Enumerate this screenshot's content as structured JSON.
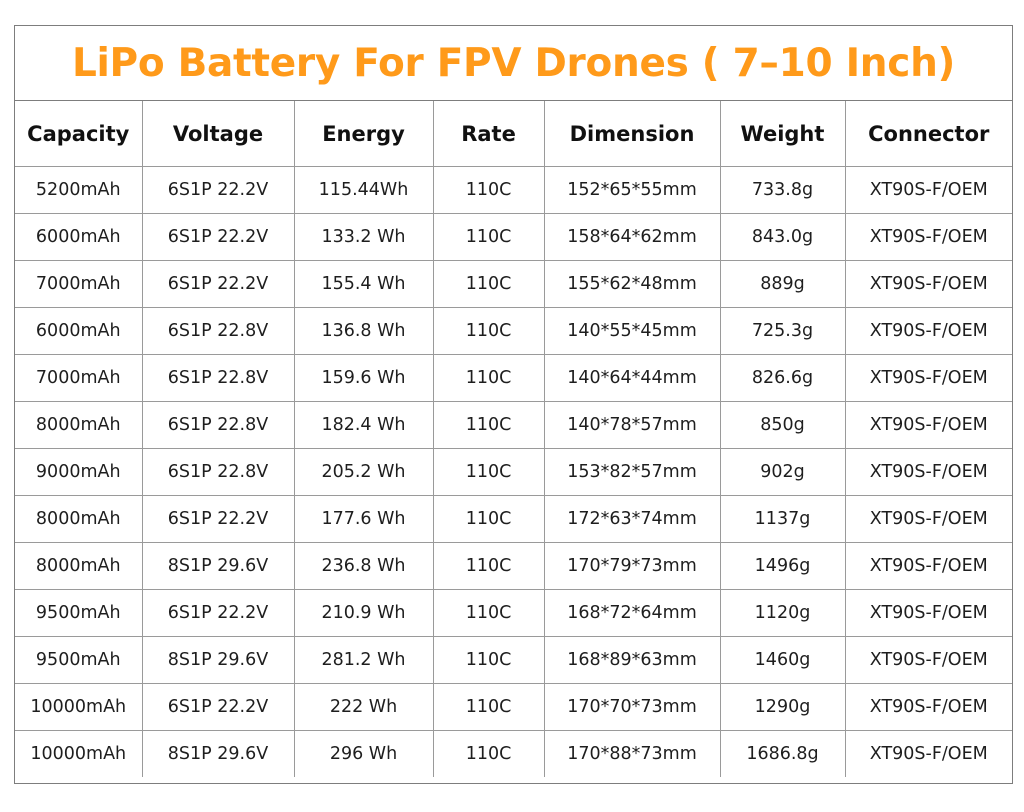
{
  "title": "LiPo Battery For FPV Drones ( 7–10 Inch)",
  "colors": {
    "title": "#ff9a1a",
    "border": "#9a9a9a",
    "text": "#1e1e1e"
  },
  "table": {
    "headers": [
      "Capacity",
      "Voltage",
      "Energy",
      "Rate",
      "Dimension",
      "Weight",
      "Connector"
    ],
    "rows": [
      [
        "5200mAh",
        "6S1P 22.2V",
        "115.44Wh",
        "110C",
        "152*65*55mm",
        "733.8g",
        "XT90S-F/OEM"
      ],
      [
        "6000mAh",
        "6S1P 22.2V",
        "133.2 Wh",
        "110C",
        "158*64*62mm",
        "843.0g",
        "XT90S-F/OEM"
      ],
      [
        "7000mAh",
        "6S1P 22.2V",
        "155.4 Wh",
        "110C",
        "155*62*48mm",
        "889g",
        "XT90S-F/OEM"
      ],
      [
        "6000mAh",
        "6S1P 22.8V",
        "136.8 Wh",
        "110C",
        "140*55*45mm",
        "725.3g",
        "XT90S-F/OEM"
      ],
      [
        "7000mAh",
        "6S1P 22.8V",
        "159.6 Wh",
        "110C",
        "140*64*44mm",
        "826.6g",
        "XT90S-F/OEM"
      ],
      [
        "8000mAh",
        "6S1P 22.8V",
        "182.4 Wh",
        "110C",
        "140*78*57mm",
        "850g",
        "XT90S-F/OEM"
      ],
      [
        "9000mAh",
        "6S1P 22.8V",
        "205.2 Wh",
        "110C",
        "153*82*57mm",
        "902g",
        "XT90S-F/OEM"
      ],
      [
        "8000mAh",
        "6S1P 22.2V",
        "177.6 Wh",
        "110C",
        "172*63*74mm",
        "1137g",
        "XT90S-F/OEM"
      ],
      [
        "8000mAh",
        "8S1P 29.6V",
        "236.8 Wh",
        "110C",
        "170*79*73mm",
        "1496g",
        "XT90S-F/OEM"
      ],
      [
        "9500mAh",
        "6S1P 22.2V",
        "210.9 Wh",
        "110C",
        "168*72*64mm",
        "1120g",
        "XT90S-F/OEM"
      ],
      [
        "9500mAh",
        "8S1P 29.6V",
        "281.2 Wh",
        "110C",
        "168*89*63mm",
        "1460g",
        "XT90S-F/OEM"
      ],
      [
        "10000mAh",
        "6S1P 22.2V",
        "222 Wh",
        "110C",
        "170*70*73mm",
        "1290g",
        "XT90S-F/OEM"
      ],
      [
        "10000mAh",
        "8S1P 29.6V",
        "296 Wh",
        "110C",
        "170*88*73mm",
        "1686.8g",
        "XT90S-F/OEM"
      ]
    ]
  }
}
